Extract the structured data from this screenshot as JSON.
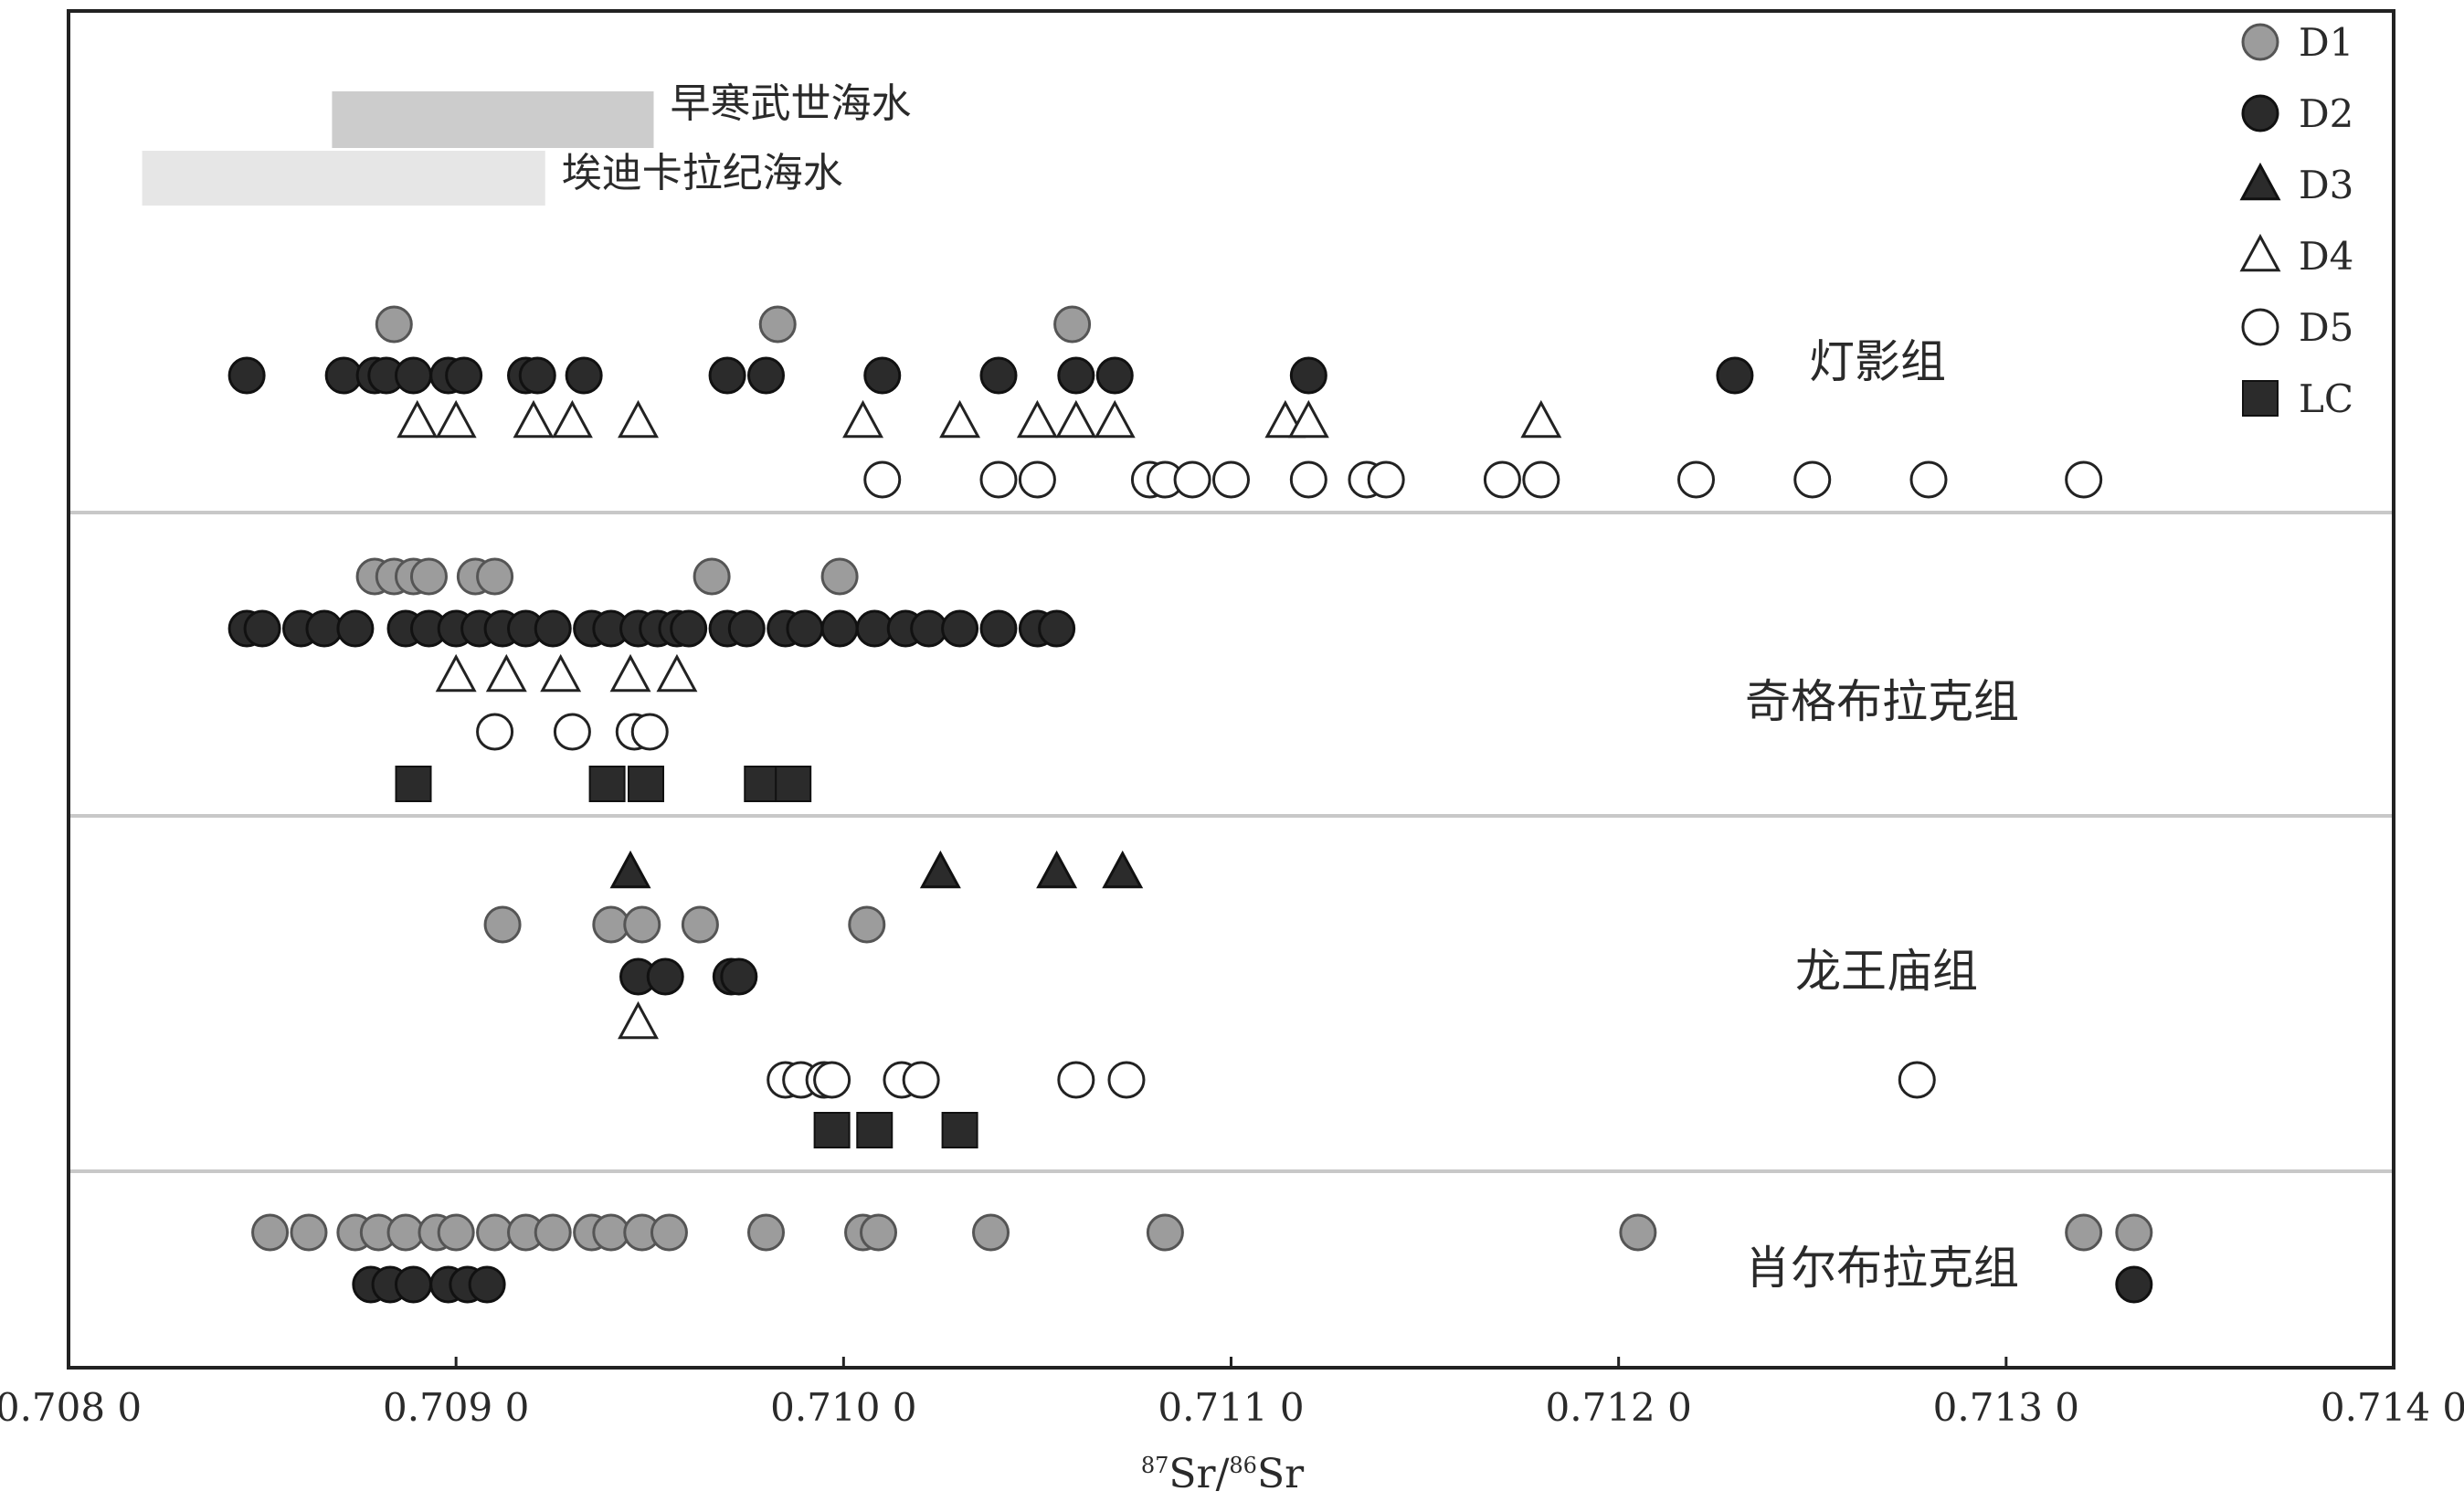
{
  "chart_data": {
    "type": "scatter",
    "xlabel": "87Sr/86Sr",
    "xlim": [
      0.708,
      0.714
    ],
    "x_ticks": [
      {
        "value": 0.708,
        "label": "0.708 0"
      },
      {
        "value": 0.709,
        "label": "0.709 0"
      },
      {
        "value": 0.71,
        "label": "0.710 0"
      },
      {
        "value": 0.711,
        "label": "0.711 0"
      },
      {
        "value": 0.712,
        "label": "0.712 0"
      },
      {
        "value": 0.713,
        "label": "0.713 0"
      },
      {
        "value": 0.714,
        "label": "0.714 0"
      }
    ],
    "legend": {
      "position": "top-right",
      "entries": [
        {
          "key": "D1",
          "label": "D1"
        },
        {
          "key": "D2",
          "label": "D2"
        },
        {
          "key": "D3",
          "label": "D3"
        },
        {
          "key": "D4",
          "label": "D4"
        },
        {
          "key": "D5",
          "label": "D5"
        },
        {
          "key": "LC",
          "label": "LC"
        }
      ]
    },
    "reference_bands": [
      {
        "label": "早寒武世海水",
        "range": [
          0.70868,
          0.70951
        ],
        "color": "#cccccc"
      },
      {
        "label": "埃迪卡拉纪海水",
        "range": [
          0.70819,
          0.70923
        ],
        "color": "#e6e6e6"
      }
    ],
    "styles": {
      "D1": {
        "marker": "circle",
        "fill": "#9c9c9c",
        "stroke": "#555555"
      },
      "D2": {
        "marker": "circle",
        "fill": "#2b2b2b",
        "stroke": "#111111"
      },
      "D3": {
        "marker": "triangle",
        "fill": "#2b2b2b",
        "stroke": "#111111"
      },
      "D4": {
        "marker": "triangle",
        "fill": "#ffffff",
        "stroke": "#222222"
      },
      "D5": {
        "marker": "circle",
        "fill": "#ffffff",
        "stroke": "#222222"
      },
      "LC": {
        "marker": "square",
        "fill": "#2b2b2b",
        "stroke": "#111111"
      }
    },
    "groups": [
      {
        "label": "灯影组",
        "series": [
          {
            "key": "D1",
            "x": [
              0.70884,
              0.70983,
              0.71059
            ]
          },
          {
            "key": "D2",
            "x": [
              0.70846,
              0.70871,
              0.70879,
              0.70882,
              0.70889,
              0.70898,
              0.70902,
              0.70918,
              0.70921,
              0.70933,
              0.7097,
              0.7098,
              0.7101,
              0.7104,
              0.7106,
              0.7107,
              0.7112,
              0.7123
            ]
          },
          {
            "key": "D4",
            "x": [
              0.7089,
              0.709,
              0.7092,
              0.7093,
              0.70947,
              0.71005,
              0.7103,
              0.7105,
              0.7106,
              0.7107,
              0.71114,
              0.7112,
              0.7118
            ]
          },
          {
            "key": "D5",
            "x": [
              0.7101,
              0.7104,
              0.7105,
              0.71079,
              0.71083,
              0.7109,
              0.711,
              0.7112,
              0.71135,
              0.7114,
              0.7117,
              0.7118,
              0.7122,
              0.7125,
              0.7128,
              0.7132
            ]
          }
        ]
      },
      {
        "label": "奇格布拉克组",
        "series": [
          {
            "key": "D1",
            "x": [
              0.70879,
              0.70884,
              0.70889,
              0.70893,
              0.70905,
              0.7091,
              0.70966,
              0.70999
            ]
          },
          {
            "key": "D2",
            "x": [
              0.70846,
              0.7085,
              0.7086,
              0.70866,
              0.70874,
              0.70887,
              0.70893,
              0.709,
              0.70906,
              0.70912,
              0.70918,
              0.70925,
              0.70935,
              0.7094,
              0.70947,
              0.70952,
              0.70957,
              0.7096,
              0.7097,
              0.70975,
              0.70985,
              0.7099,
              0.70999,
              0.71008,
              0.71016,
              0.71022,
              0.7103,
              0.7104,
              0.7105,
              0.71055
            ]
          },
          {
            "key": "D4",
            "x": [
              0.709,
              0.70913,
              0.70927,
              0.70945,
              0.70957
            ]
          },
          {
            "key": "D5",
            "x": [
              0.7091,
              0.7093,
              0.70946,
              0.7095
            ]
          },
          {
            "key": "LC",
            "x": [
              0.70889,
              0.70939,
              0.70949,
              0.70979,
              0.70987
            ]
          }
        ]
      },
      {
        "label": "龙王庙组",
        "series": [
          {
            "key": "D3",
            "x": [
              0.70945,
              0.71025,
              0.71055,
              0.71072
            ]
          },
          {
            "key": "D1",
            "x": [
              0.70912,
              0.7094,
              0.70948,
              0.70963,
              0.71006
            ]
          },
          {
            "key": "D2",
            "x": [
              0.70947,
              0.70954,
              0.70971,
              0.70973
            ]
          },
          {
            "key": "D4",
            "x": [
              0.70947
            ]
          },
          {
            "key": "D5",
            "x": [
              0.70985,
              0.70989,
              0.70995,
              0.70997,
              0.71015,
              0.7102,
              0.7106,
              0.71073,
              0.71277
            ]
          },
          {
            "key": "LC",
            "x": [
              0.70997,
              0.71008,
              0.7103
            ]
          }
        ]
      },
      {
        "label": "肖尔布拉克组",
        "series": [
          {
            "key": "D1",
            "x": [
              0.70852,
              0.70862,
              0.70874,
              0.7088,
              0.70887,
              0.70895,
              0.709,
              0.7091,
              0.70918,
              0.70925,
              0.70935,
              0.7094,
              0.70948,
              0.70955,
              0.7098,
              0.71005,
              0.71009,
              0.71038,
              0.71083,
              0.71205,
              0.7132,
              0.71333
            ]
          },
          {
            "key": "D2",
            "x": [
              0.70878,
              0.70883,
              0.70889,
              0.70898,
              0.70903,
              0.70908,
              0.71333
            ]
          }
        ]
      }
    ]
  }
}
